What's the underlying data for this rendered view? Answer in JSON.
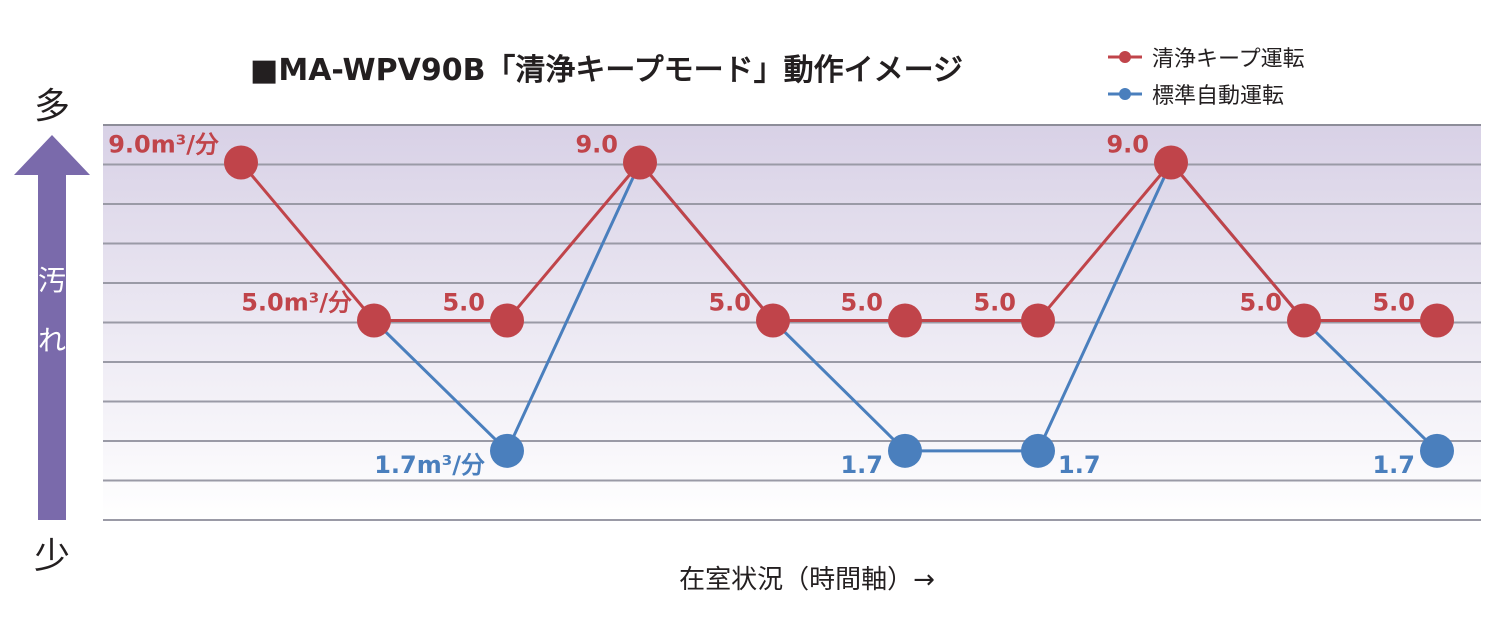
{
  "chart_data": {
    "type": "line",
    "title": "■MA-WPV90B「清浄キープモード」動作イメージ",
    "xlabel": "在室状況（時間軸）→",
    "ylabel_top": "多",
    "ylabel_bottom": "少",
    "ylabel_middle": [
      "汚",
      "れ"
    ],
    "ylim": [
      0,
      10
    ],
    "x": [
      1,
      2,
      3,
      4,
      5,
      6,
      7,
      8,
      9,
      10
    ],
    "series": [
      {
        "name": "清浄キープ運転",
        "color": "#c0444a",
        "values": [
          9.0,
          5.0,
          5.0,
          9.0,
          5.0,
          5.0,
          5.0,
          9.0,
          5.0,
          5.0
        ],
        "labels": [
          "9.0m³/分",
          "5.0m³/分",
          "5.0",
          "9.0",
          "5.0",
          "5.0",
          "5.0",
          "9.0",
          "5.0",
          "5.0"
        ]
      },
      {
        "name": "標準自動運転",
        "color": "#4a7fbd",
        "values": [
          null,
          5.0,
          1.7,
          9.0,
          5.0,
          1.7,
          1.7,
          9.0,
          5.0,
          1.7
        ],
        "labels": [
          "",
          "",
          "1.7m³/分",
          "",
          "",
          "1.7",
          "1.7",
          "",
          "",
          "1.7"
        ]
      }
    ],
    "legend": [
      "清浄キープ運転",
      "標準自動運転"
    ],
    "legend_position": "top-right"
  }
}
